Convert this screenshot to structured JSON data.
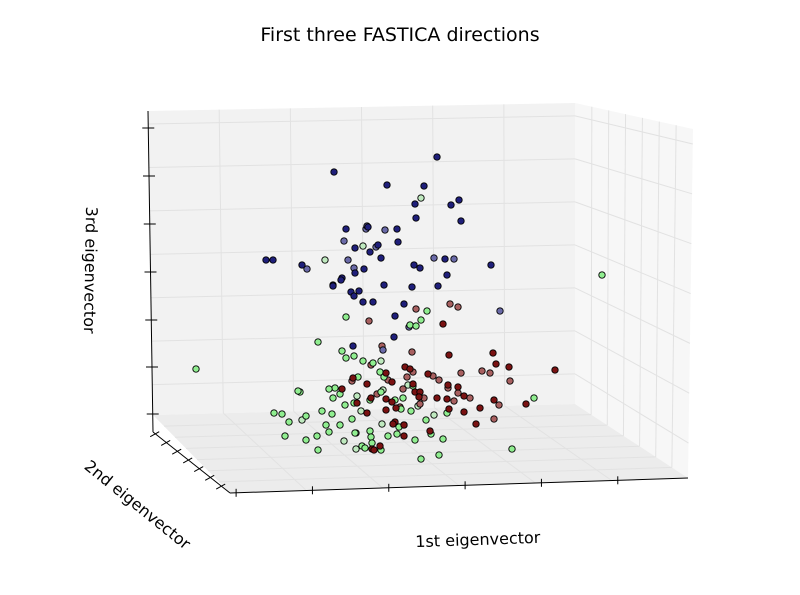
{
  "chart_data": {
    "type": "scatter",
    "projection": "3d",
    "title": "First three FASTICA directions",
    "xlabel": "1st eigenvector",
    "ylabel": "2nd eigenvector",
    "zlabel": "3rd eigenvector",
    "tick_labels_shown": false,
    "grid": true,
    "colors": {
      "blue": "#1f1f7a",
      "blue_light": "#6a6aa8",
      "red": "#7a1212",
      "red_light": "#a86060",
      "green": "#90ee90",
      "green_light": "#bfe9bf",
      "pane": "#f0f0f0",
      "grid": "#e2e2e2"
    },
    "series": [
      {
        "color_key": "blue",
        "points": [
          [
            437,
            157
          ],
          [
            334,
            172
          ],
          [
            387,
            185
          ],
          [
            424,
            186
          ],
          [
            459,
            200
          ],
          [
            451,
            205
          ],
          [
            415,
            204
          ],
          [
            461,
            221
          ],
          [
            416,
            218
          ],
          [
            368,
            227
          ],
          [
            346,
            229
          ],
          [
            397,
            229
          ],
          [
            378,
            245
          ],
          [
            355,
            248
          ],
          [
            370,
            252
          ],
          [
            381,
            258
          ],
          [
            364,
            269
          ],
          [
            266,
            260
          ],
          [
            273,
            260
          ],
          [
            302,
            265
          ],
          [
            414,
            265
          ],
          [
            420,
            268
          ],
          [
            445,
            259
          ],
          [
            491,
            265
          ],
          [
            355,
            273
          ],
          [
            342,
            278
          ],
          [
            333,
            285
          ],
          [
            384,
            285
          ],
          [
            351,
            292
          ],
          [
            354,
            296
          ],
          [
            363,
            302
          ],
          [
            373,
            302
          ],
          [
            341,
            280
          ],
          [
            412,
            287
          ],
          [
            447,
            275
          ],
          [
            404,
            304
          ],
          [
            395,
            316
          ],
          [
            438,
            286
          ],
          [
            353,
            346
          ],
          [
            394,
            337
          ],
          [
            359,
            291
          ],
          [
            333,
            286
          ],
          [
            398,
            242
          ]
        ]
      },
      {
        "color_key": "blue_light",
        "points": [
          [
            385,
            230
          ],
          [
            366,
            229
          ],
          [
            344,
            241
          ],
          [
            354,
            268
          ],
          [
            348,
            260
          ],
          [
            434,
            258
          ],
          [
            454,
            259
          ],
          [
            307,
            269
          ],
          [
            500,
            311
          ],
          [
            409,
            327
          ],
          [
            383,
            350
          ],
          [
            376,
            247
          ],
          [
            367,
            226
          ]
        ]
      },
      {
        "color_key": "red",
        "points": [
          [
            555,
            370
          ],
          [
            526,
            404
          ],
          [
            443,
            324
          ],
          [
            493,
            353
          ],
          [
            449,
            355
          ],
          [
            496,
            364
          ],
          [
            509,
            367
          ],
          [
            405,
            367
          ],
          [
            410,
            369
          ],
          [
            428,
            374
          ],
          [
            448,
            385
          ],
          [
            458,
            387
          ],
          [
            386,
            373
          ],
          [
            413,
            384
          ],
          [
            415,
            392
          ],
          [
            420,
            392
          ],
          [
            419,
            397
          ],
          [
            437,
            398
          ],
          [
            392,
            382
          ],
          [
            447,
            399
          ],
          [
            464,
            396
          ],
          [
            449,
            409
          ],
          [
            464,
            412
          ],
          [
            476,
            424
          ],
          [
            480,
            408
          ],
          [
            371,
            398
          ],
          [
            386,
            399
          ],
          [
            392,
            402
          ],
          [
            396,
            408
          ],
          [
            342,
            389
          ],
          [
            353,
            378
          ],
          [
            367,
            384
          ],
          [
            357,
            403
          ],
          [
            367,
            413
          ],
          [
            386,
            410
          ],
          [
            395,
            422
          ],
          [
            404,
            436
          ],
          [
            393,
            424
          ],
          [
            372,
            449
          ],
          [
            380,
            446
          ],
          [
            404,
            425
          ],
          [
            430,
            431
          ],
          [
            374,
            450
          ],
          [
            494,
            400
          ]
        ]
      },
      {
        "color_key": "red_light",
        "points": [
          [
            450,
            304
          ],
          [
            458,
            307
          ],
          [
            416,
            309
          ],
          [
            369,
            321
          ],
          [
            382,
            346
          ],
          [
            412,
            352
          ],
          [
            413,
            372
          ],
          [
            433,
            376
          ],
          [
            461,
            373
          ],
          [
            482,
            371
          ],
          [
            490,
            373
          ],
          [
            510,
            381
          ],
          [
            499,
            405
          ],
          [
            494,
            419
          ],
          [
            458,
            393
          ],
          [
            448,
            388
          ],
          [
            470,
            398
          ],
          [
            371,
            365
          ],
          [
            388,
            380
          ],
          [
            403,
            389
          ],
          [
            377,
            394
          ],
          [
            352,
            381
          ],
          [
            400,
            407
          ],
          [
            424,
            398
          ],
          [
            420,
            404
          ],
          [
            454,
            401
          ],
          [
            439,
            380
          ],
          [
            407,
            377
          ]
        ]
      },
      {
        "color_key": "green",
        "points": [
          [
            602,
            275
          ],
          [
            196,
            369
          ],
          [
            318,
            342
          ],
          [
            346,
            317
          ],
          [
            427,
            311
          ],
          [
            421,
            320
          ],
          [
            410,
            325
          ],
          [
            416,
            326
          ],
          [
            342,
            351
          ],
          [
            346,
            358
          ],
          [
            354,
            356
          ],
          [
            363,
            361
          ],
          [
            373,
            363
          ],
          [
            380,
            372
          ],
          [
            384,
            377
          ],
          [
            358,
            377
          ],
          [
            335,
            388
          ],
          [
            329,
            389
          ],
          [
            340,
            394
          ],
          [
            333,
            398
          ],
          [
            345,
            405
          ],
          [
            300,
            392
          ],
          [
            298,
            391
          ],
          [
            274,
            413
          ],
          [
            282,
            414
          ],
          [
            306,
            416
          ],
          [
            289,
            422
          ],
          [
            322,
            411
          ],
          [
            332,
            414
          ],
          [
            326,
            425
          ],
          [
            329,
            432
          ],
          [
            340,
            425
          ],
          [
            317,
            436
          ],
          [
            306,
            440
          ],
          [
            285,
            436
          ],
          [
            318,
            450
          ],
          [
            355,
            433
          ],
          [
            370,
            431
          ],
          [
            371,
            437
          ],
          [
            372,
            443
          ],
          [
            362,
            446
          ],
          [
            365,
            448
          ],
          [
            381,
            450
          ],
          [
            388,
            436
          ],
          [
            397,
            434
          ],
          [
            404,
            425
          ],
          [
            403,
            398
          ],
          [
            411,
            411
          ],
          [
            395,
            400
          ],
          [
            401,
            409
          ],
          [
            415,
            440
          ],
          [
            421,
            459
          ],
          [
            439,
            455
          ],
          [
            443,
            439
          ],
          [
            431,
            434
          ],
          [
            426,
            420
          ],
          [
            447,
            413
          ],
          [
            534,
            398
          ],
          [
            512,
            449
          ],
          [
            381,
            392
          ],
          [
            352,
            419
          ],
          [
            413,
            386
          ],
          [
            399,
            427
          ],
          [
            370,
            400
          ],
          [
            354,
            403
          ]
        ]
      },
      {
        "color_key": "green_light",
        "points": [
          [
            421,
            198
          ],
          [
            363,
            246
          ],
          [
            325,
            260
          ],
          [
            381,
            361
          ],
          [
            408,
            385
          ],
          [
            383,
            390
          ],
          [
            434,
            415
          ],
          [
            418,
            406
          ],
          [
            357,
            396
          ],
          [
            356,
            449
          ],
          [
            356,
            433
          ],
          [
            382,
            424
          ],
          [
            344,
            441
          ],
          [
            302,
            420
          ],
          [
            361,
            411
          ]
        ]
      }
    ]
  }
}
